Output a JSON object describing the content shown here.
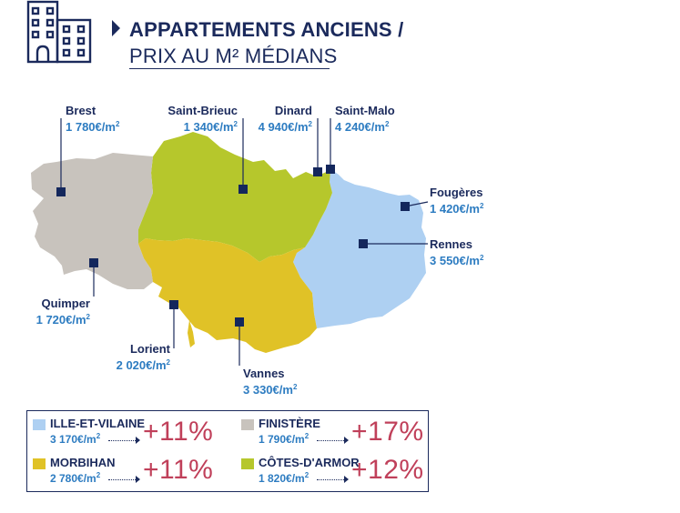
{
  "header": {
    "title_line1": "APPARTEMENTS ANCIENS /",
    "title_line2": "PRIX AU M² MÉDIANS",
    "icon": "building-icon"
  },
  "colors": {
    "ille_et_vilaine": "#aed0f2",
    "finistere": "#c8c3bd",
    "morbihan": "#e0c227",
    "cotes_darmor": "#b6c72c",
    "marker": "#14275c",
    "price_text": "#2d7cc1",
    "percent_text": "#c0405a"
  },
  "cities": {
    "brest": {
      "name": "Brest",
      "price": "1 780€/m",
      "unit_exp": "2"
    },
    "saint_brieuc": {
      "name": "Saint-Brieuc",
      "price": "1 340€/m",
      "unit_exp": "2"
    },
    "dinard": {
      "name": "Dinard",
      "price": "4 940€/m",
      "unit_exp": "2"
    },
    "saint_malo": {
      "name": "Saint-Malo",
      "price": "4 240€/m",
      "unit_exp": "2"
    },
    "fougeres": {
      "name": "Fougères",
      "price": "1 420€/m",
      "unit_exp": "2"
    },
    "rennes": {
      "name": "Rennes",
      "price": "3 550€/m",
      "unit_exp": "2"
    },
    "quimper": {
      "name": "Quimper",
      "price": "1 720€/m",
      "unit_exp": "2"
    },
    "lorient": {
      "name": "Lorient",
      "price": "2 020€/m",
      "unit_exp": "2"
    },
    "vannes": {
      "name": "Vannes",
      "price": "3 330€/m",
      "unit_exp": "2"
    }
  },
  "legend": {
    "items": [
      {
        "name": "ILLE-ET-VILAINE",
        "price": "3 170€/m",
        "unit_exp": "2",
        "change": "+11%"
      },
      {
        "name": "FINISTÈRE",
        "price": "1 790€/m",
        "unit_exp": "2",
        "change": "+17%"
      },
      {
        "name": "MORBIHAN",
        "price": "2 780€/m",
        "unit_exp": "2",
        "change": "+11%"
      },
      {
        "name": "CÔTES-D'ARMOR",
        "price": "1 820€/m",
        "unit_exp": "2",
        "change": "+12%"
      }
    ]
  }
}
